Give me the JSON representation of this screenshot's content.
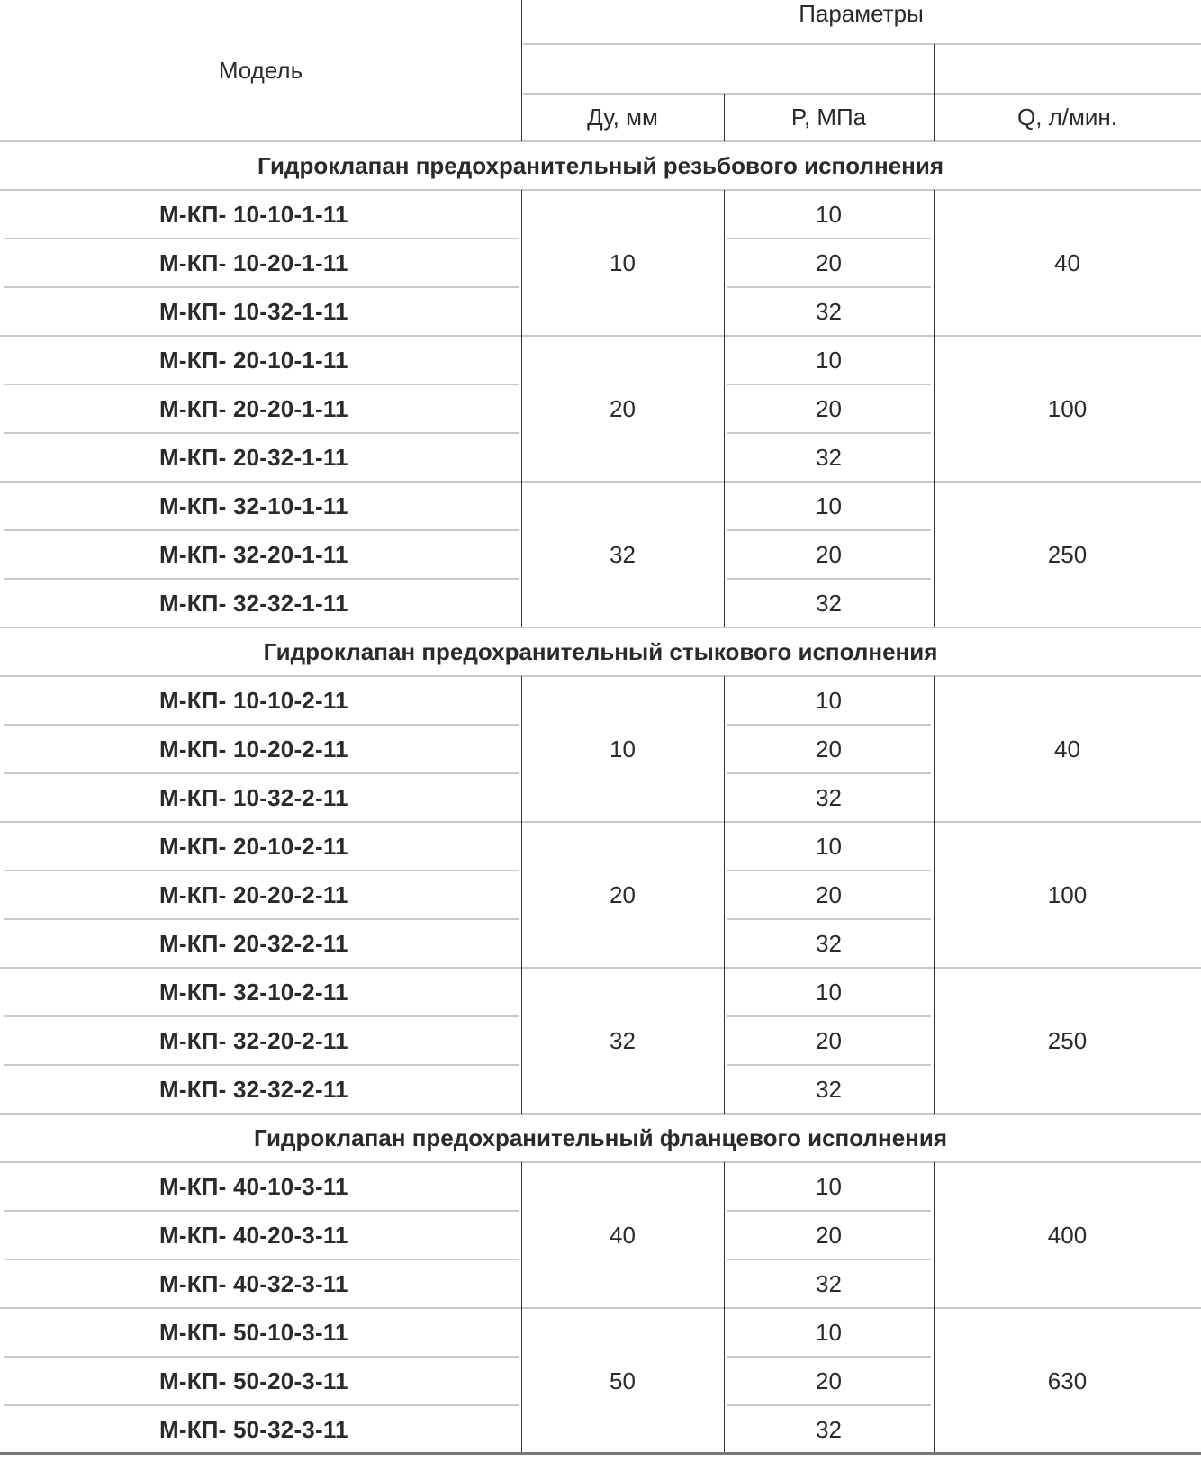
{
  "header": {
    "model": "Модель",
    "params": "Параметры",
    "du": "Ду, мм",
    "p": "P, МПа",
    "q": "Q, л/мин."
  },
  "groups": [
    {
      "title": "Гидроклапан предохранительный резьбового исполнения",
      "subgroups": [
        {
          "du": "10",
          "q": "40",
          "rows": [
            {
              "model": "М-КП- 10-10-1-11",
              "p": "10"
            },
            {
              "model": "М-КП- 10-20-1-11",
              "p": "20"
            },
            {
              "model": "М-КП- 10-32-1-11",
              "p": "32"
            }
          ]
        },
        {
          "du": "20",
          "q": "100",
          "rows": [
            {
              "model": "М-КП- 20-10-1-11",
              "p": "10"
            },
            {
              "model": "М-КП- 20-20-1-11",
              "p": "20"
            },
            {
              "model": "М-КП- 20-32-1-11",
              "p": "32"
            }
          ]
        },
        {
          "du": "32",
          "q": "250",
          "rows": [
            {
              "model": "М-КП- 32-10-1-11",
              "p": "10"
            },
            {
              "model": "М-КП- 32-20-1-11",
              "p": "20"
            },
            {
              "model": "М-КП- 32-32-1-11",
              "p": "32"
            }
          ]
        }
      ]
    },
    {
      "title": "Гидроклапан предохранительный стыкового исполнения",
      "subgroups": [
        {
          "du": "10",
          "q": "40",
          "rows": [
            {
              "model": "М-КП- 10-10-2-11",
              "p": "10"
            },
            {
              "model": "М-КП- 10-20-2-11",
              "p": "20"
            },
            {
              "model": "М-КП- 10-32-2-11",
              "p": "32"
            }
          ]
        },
        {
          "du": "20",
          "q": "100",
          "rows": [
            {
              "model": "М-КП- 20-10-2-11",
              "p": "10"
            },
            {
              "model": "М-КП- 20-20-2-11",
              "p": "20"
            },
            {
              "model": "М-КП- 20-32-2-11",
              "p": "32"
            }
          ]
        },
        {
          "du": "32",
          "q": "250",
          "rows": [
            {
              "model": "М-КП- 32-10-2-11",
              "p": "10"
            },
            {
              "model": "М-КП- 32-20-2-11",
              "p": "20"
            },
            {
              "model": "М-КП- 32-32-2-11",
              "p": "32"
            }
          ]
        }
      ]
    },
    {
      "title": "Гидроклапан предохранительный фланцевого исполнения",
      "subgroups": [
        {
          "du": "40",
          "q": "400",
          "rows": [
            {
              "model": "М-КП- 40-10-3-11",
              "p": "10"
            },
            {
              "model": "М-КП- 40-20-3-11",
              "p": "20"
            },
            {
              "model": "М-КП- 40-32-3-11",
              "p": "32"
            }
          ]
        },
        {
          "du": "50",
          "q": "630",
          "rows": [
            {
              "model": "М-КП- 50-10-3-11",
              "p": "10"
            },
            {
              "model": "М-КП- 50-20-3-11",
              "p": "20"
            },
            {
              "model": "М-КП- 50-32-3-11",
              "p": "32"
            }
          ]
        }
      ]
    }
  ]
}
